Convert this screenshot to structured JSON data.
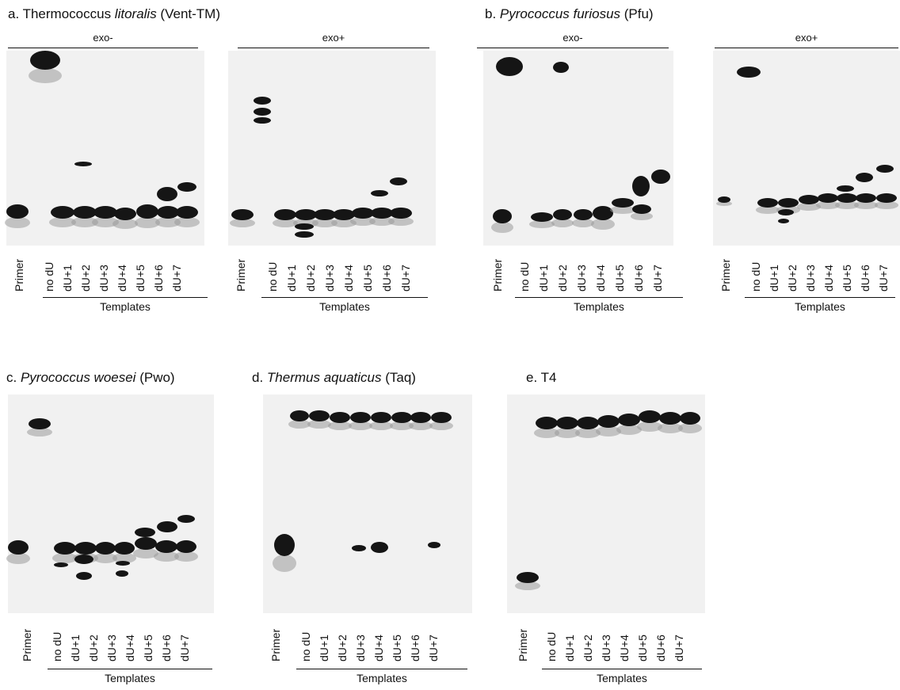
{
  "panels": [
    {
      "id": "a",
      "prefix": "a. Thermococcus ",
      "italic": "litoralis",
      "suffix": " (Vent-TM)"
    },
    {
      "id": "b",
      "prefix": "b. ",
      "italic": "Pyrococcus furiosus",
      "suffix": " (Pfu)"
    },
    {
      "id": "c",
      "prefix": "c. ",
      "italic": "Pyrococcus woesei",
      "suffix": " (Pwo)"
    },
    {
      "id": "d",
      "prefix": "d. ",
      "italic": "Thermus aquaticus",
      "suffix": " (Taq)"
    },
    {
      "id": "e",
      "prefix": "e. T4",
      "italic": "",
      "suffix": ""
    }
  ],
  "gel_headers": {
    "exo_minus": "exo-",
    "exo_plus": "exo+"
  },
  "lanes": [
    "Primer",
    "no dU",
    "dU+1",
    "dU+2",
    "dU+3",
    "dU+4",
    "dU+5",
    "dU+6",
    "dU+7"
  ],
  "templates_label": "Templates"
}
